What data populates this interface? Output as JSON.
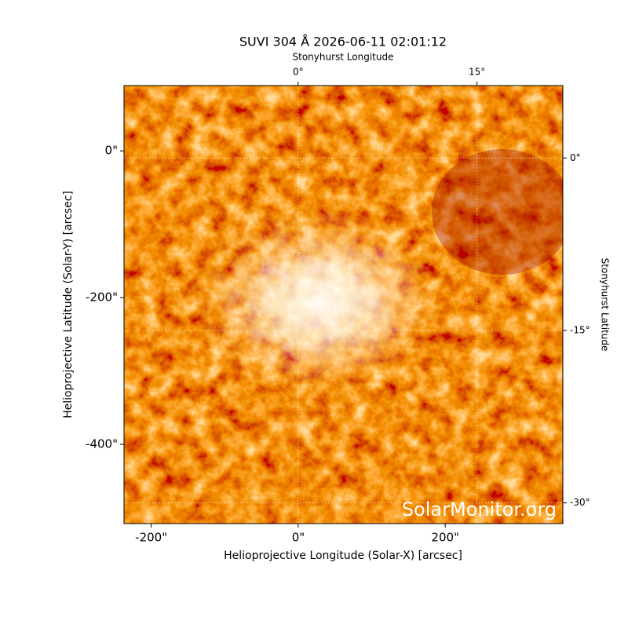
{
  "chart_data": {
    "type": "image",
    "title": "SUVI 304 Å 2026-06-11 02:01:12",
    "xlabel": "Helioprojective Longitude (Solar-X) [arcsec]",
    "ylabel": "Helioprojective Latitude (Solar-Y) [arcsec]",
    "x2label": "Stonyhurst Longitude",
    "y2label": "Stonyhurst Latitude",
    "watermark": "SolarMonitor.org",
    "xlim": [
      -237,
      360
    ],
    "ylim": [
      -508,
      89
    ],
    "xticks": [
      {
        "value": -200,
        "label": "-200\""
      },
      {
        "value": 0,
        "label": "0\""
      },
      {
        "value": 200,
        "label": "200\""
      }
    ],
    "yticks": [
      {
        "value": 0,
        "label": "0\""
      },
      {
        "value": -200,
        "label": "-200\""
      },
      {
        "value": -400,
        "label": "-400\""
      }
    ],
    "x2lim": [
      -14.6,
      22.2
    ],
    "x2ticks": [
      {
        "value": 0,
        "label": "0°"
      },
      {
        "value": 15,
        "label": "15°"
      }
    ],
    "y2lim": [
      6.3,
      -31.8
    ],
    "y2ticks": [
      {
        "value": 0,
        "label": "0°"
      },
      {
        "value": -15,
        "label": "-15°"
      },
      {
        "value": -30,
        "label": "-30°"
      }
    ],
    "grid": true
  }
}
